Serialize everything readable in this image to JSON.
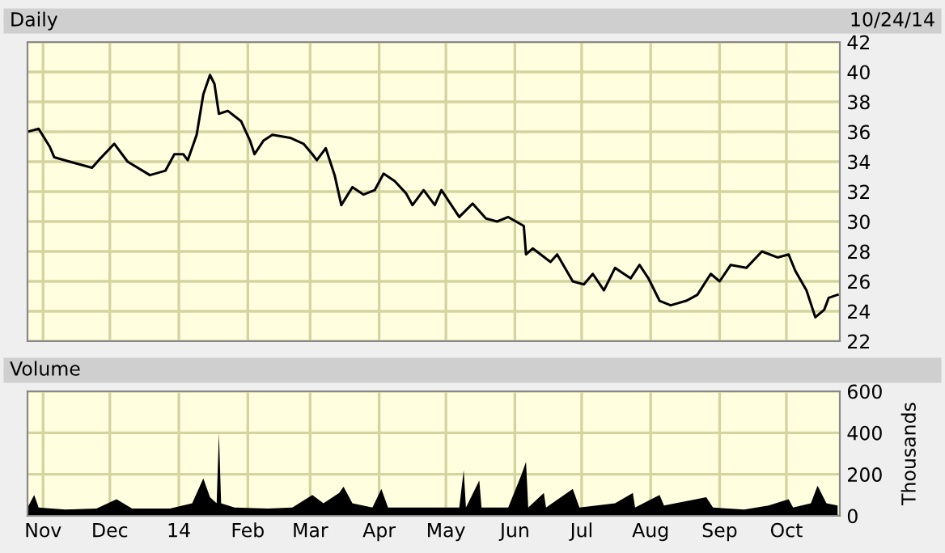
{
  "chart_data": [
    {
      "type": "line",
      "title": "Daily",
      "annotations": [
        "10/24/14"
      ],
      "ylim": [
        22,
        42
      ],
      "yticks": [
        22,
        24,
        26,
        28,
        30,
        32,
        34,
        36,
        38,
        40,
        42
      ],
      "xlim": [
        "2013-10-25",
        "2014-10-25"
      ],
      "xticks": [
        {
          "value": "2013-11-01",
          "label": null
        },
        {
          "value": "2013-12-01",
          "label": null
        },
        {
          "value": "2014-01-01",
          "label": null
        },
        {
          "value": "2014-02-01",
          "label": null
        },
        {
          "value": "2014-03-01",
          "label": null
        },
        {
          "value": "2014-04-01",
          "label": null
        },
        {
          "value": "2014-05-01",
          "label": null
        },
        {
          "value": "2014-06-01",
          "label": null
        },
        {
          "value": "2014-07-01",
          "label": null
        },
        {
          "value": "2014-08-01",
          "label": null
        },
        {
          "value": "2014-09-01",
          "label": null
        },
        {
          "value": "2014-10-01",
          "label": null
        }
      ],
      "tick_labels": "y",
      "grid": true,
      "legend": false,
      "x": [
        "2013-10-25",
        "2013-10-30",
        "2013-11-04",
        "2013-11-06",
        "2013-11-13",
        "2013-11-23",
        "2013-11-26",
        "2013-12-03",
        "2013-12-09",
        "2013-12-19",
        "2013-12-26",
        "2013-12-30",
        "2014-01-03",
        "2014-01-05",
        "2014-01-09",
        "2014-01-12",
        "2014-01-15",
        "2014-01-17",
        "2014-01-19",
        "2014-01-23",
        "2014-01-29",
        "2014-02-02",
        "2014-02-04",
        "2014-02-08",
        "2014-02-12",
        "2014-02-20",
        "2014-02-26",
        "2014-03-02",
        "2014-03-04",
        "2014-03-08",
        "2014-03-12",
        "2014-03-15",
        "2014-03-20",
        "2014-03-25",
        "2014-03-30",
        "2014-04-03",
        "2014-04-08",
        "2014-04-13",
        "2014-04-16",
        "2014-04-21",
        "2014-04-26",
        "2014-04-29",
        "2014-05-07",
        "2014-05-13",
        "2014-05-19",
        "2014-05-24",
        "2014-05-29",
        "2014-06-05",
        "2014-06-06",
        "2014-06-09",
        "2014-06-17",
        "2014-06-20",
        "2014-06-27",
        "2014-07-02",
        "2014-07-06",
        "2014-07-11",
        "2014-07-16",
        "2014-07-23",
        "2014-07-27",
        "2014-07-31",
        "2014-08-05",
        "2014-08-10",
        "2014-08-17",
        "2014-08-22",
        "2014-08-28",
        "2014-09-01",
        "2014-09-06",
        "2014-09-13",
        "2014-09-20",
        "2014-09-27",
        "2014-10-02",
        "2014-10-05",
        "2014-10-10",
        "2014-10-14",
        "2014-10-18",
        "2014-10-20",
        "2014-10-24"
      ],
      "series": [
        {
          "color": "#000000",
          "values": [
            36.0,
            36.2,
            35.0,
            34.3,
            34.0,
            33.6,
            34.1,
            35.2,
            34.0,
            33.1,
            33.4,
            34.5,
            34.5,
            34.1,
            35.8,
            38.5,
            39.8,
            39.2,
            37.2,
            37.4,
            36.7,
            35.4,
            34.5,
            35.4,
            35.8,
            35.6,
            35.2,
            34.5,
            34.1,
            34.9,
            33.1,
            31.1,
            32.3,
            31.8,
            32.1,
            33.2,
            32.7,
            31.9,
            31.1,
            32.1,
            31.1,
            32.1,
            30.3,
            31.2,
            30.2,
            30.0,
            30.3,
            29.7,
            27.8,
            28.2,
            27.3,
            27.8,
            26.0,
            25.8,
            26.5,
            25.4,
            26.9,
            26.2,
            27.1,
            26.2,
            24.7,
            24.4,
            24.7,
            25.1,
            26.5,
            26.0,
            27.1,
            26.9,
            28.0,
            27.6,
            27.8,
            26.7,
            25.4,
            23.6,
            24.1,
            24.9,
            25.1
          ]
        }
      ]
    },
    {
      "type": "area",
      "title": "Volume",
      "y2label": "Thousands",
      "ylim": [
        0,
        600
      ],
      "yticks": [
        0,
        200,
        400,
        600
      ],
      "xlim": [
        "2013-10-25",
        "2014-10-25"
      ],
      "xticks": [
        {
          "value": "2013-11-01",
          "label": "Nov"
        },
        {
          "value": "2013-12-01",
          "label": "Dec"
        },
        {
          "value": "2014-01-01",
          "label": "14"
        },
        {
          "value": "2014-02-01",
          "label": "Feb"
        },
        {
          "value": "2014-03-01",
          "label": "Mar"
        },
        {
          "value": "2014-04-01",
          "label": "Apr"
        },
        {
          "value": "2014-05-01",
          "label": "May"
        },
        {
          "value": "2014-06-01",
          "label": "Jun"
        },
        {
          "value": "2014-07-01",
          "label": "Jul"
        },
        {
          "value": "2014-08-01",
          "label": "Aug"
        },
        {
          "value": "2014-09-01",
          "label": "Sep"
        },
        {
          "value": "2014-10-01",
          "label": "Oct"
        }
      ],
      "grid": true,
      "legend": false,
      "x": [
        "2013-10-25",
        "2013-10-28",
        "2013-10-30",
        "2013-11-11",
        "2013-11-25",
        "2013-12-04",
        "2013-12-11",
        "2013-12-28",
        "2014-01-07",
        "2014-01-12",
        "2014-01-15",
        "2014-01-18",
        "2014-01-19",
        "2014-01-20",
        "2014-01-26",
        "2014-02-10",
        "2014-02-21",
        "2014-03-02",
        "2014-03-07",
        "2014-03-14",
        "2014-03-16",
        "2014-03-20",
        "2014-03-29",
        "2014-04-02",
        "2014-04-05",
        "2014-04-16",
        "2014-05-01",
        "2014-05-07",
        "2014-05-09",
        "2014-05-10",
        "2014-05-16",
        "2014-05-17",
        "2014-05-29",
        "2014-06-04",
        "2014-06-06",
        "2014-06-07",
        "2014-06-14",
        "2014-06-15",
        "2014-06-27",
        "2014-06-30",
        "2014-07-16",
        "2014-07-24",
        "2014-07-25",
        "2014-08-05",
        "2014-08-07",
        "2014-08-26",
        "2014-08-29",
        "2014-09-12",
        "2014-09-23",
        "2014-10-02",
        "2014-10-04",
        "2014-10-12",
        "2014-10-15",
        "2014-10-19",
        "2014-10-24"
      ],
      "series": [
        {
          "color": "#000000",
          "values": [
            40,
            100,
            40,
            30,
            35,
            80,
            35,
            35,
            60,
            180,
            90,
            60,
            400,
            60,
            40,
            35,
            40,
            100,
            60,
            110,
            140,
            60,
            40,
            130,
            40,
            40,
            40,
            40,
            220,
            40,
            170,
            40,
            40,
            200,
            260,
            40,
            110,
            40,
            130,
            40,
            60,
            110,
            40,
            100,
            50,
            90,
            40,
            30,
            50,
            80,
            40,
            60,
            145,
            60,
            50
          ]
        }
      ]
    }
  ]
}
